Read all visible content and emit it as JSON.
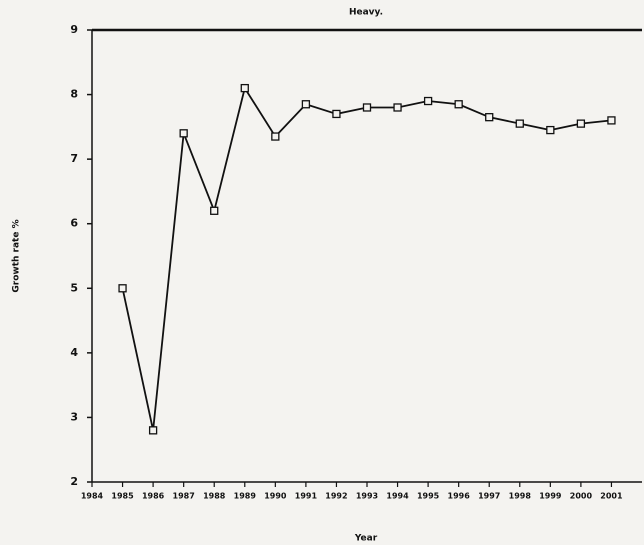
{
  "chart_data": {
    "type": "line",
    "title": "Heavy.",
    "x_label": "Year",
    "y_label": "Growth rate %",
    "x": [
      1985,
      1986,
      1987,
      1988,
      1989,
      1990,
      1991,
      1992,
      1993,
      1994,
      1995,
      1996,
      1997,
      1998,
      1999,
      2000,
      2001
    ],
    "values": [
      5.0,
      2.8,
      7.4,
      6.2,
      8.1,
      7.35,
      7.85,
      7.7,
      7.8,
      7.8,
      7.9,
      7.85,
      7.65,
      7.55,
      7.45,
      7.55,
      7.6
    ],
    "color": "#111111",
    "xlim": [
      1984,
      2002
    ],
    "xticks": [
      1984,
      1985,
      1986,
      1987,
      1988,
      1989,
      1990,
      1991,
      1992,
      1993,
      1994,
      1995,
      1996,
      1997,
      1998,
      1999,
      2000,
      2001
    ],
    "ylim": [
      2,
      9
    ],
    "yticks": [
      2,
      3,
      4,
      5,
      6,
      7,
      8,
      9
    ]
  }
}
